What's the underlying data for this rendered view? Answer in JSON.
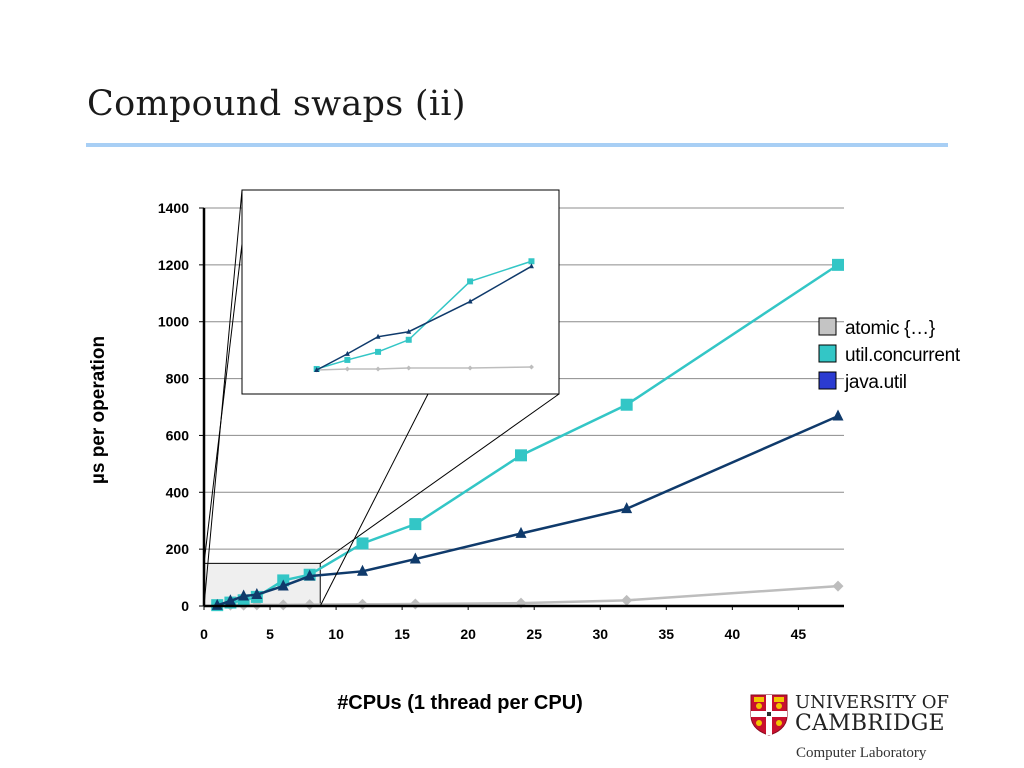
{
  "slide": {
    "title": "Compound swaps (ii)"
  },
  "chart_data": {
    "type": "line",
    "title": "",
    "xlabel": "#CPUs (1 thread per CPU)",
    "ylabel": "µs per operation",
    "xlim": [
      0,
      48
    ],
    "ylim": [
      0,
      1400
    ],
    "xticks": [
      0,
      5,
      10,
      15,
      20,
      25,
      30,
      35,
      40,
      45
    ],
    "yticks": [
      0,
      200,
      400,
      600,
      800,
      1000,
      1200,
      1400
    ],
    "grid": "horizontal",
    "legend_position": "right",
    "series": [
      {
        "name": "atomic {…}",
        "color": "#bdbdbd",
        "marker": "diamond",
        "x": [
          1,
          2,
          3,
          4,
          6,
          8,
          12,
          16,
          24,
          32,
          48
        ],
        "y": [
          2,
          3,
          3,
          4,
          4,
          5,
          6,
          7,
          10,
          20,
          70
        ]
      },
      {
        "name": "util.concurrent",
        "color": "#33c6c6",
        "marker": "square",
        "x": [
          1,
          2,
          3,
          4,
          6,
          8,
          12,
          16,
          24,
          32,
          48
        ],
        "y": [
          3,
          12,
          20,
          32,
          90,
          110,
          220,
          288,
          530,
          708,
          1200
        ]
      },
      {
        "name": "java.util",
        "color": "#0f3a6b",
        "marker": "triangle",
        "x": [
          1,
          2,
          3,
          4,
          6,
          8,
          12,
          16,
          24,
          32,
          48
        ],
        "y": [
          2,
          18,
          35,
          40,
          70,
          105,
          122,
          165,
          255,
          342,
          668
        ]
      }
    ],
    "inset": {
      "description": "magnified view of the region x 0–8, y 0–150",
      "xlim": [
        0,
        8.8
      ],
      "ylim": [
        0,
        150
      ]
    }
  },
  "logo": {
    "line1": "UNIVERSITY OF",
    "line2": "CAMBRIDGE",
    "line3": "Computer Laboratory"
  }
}
